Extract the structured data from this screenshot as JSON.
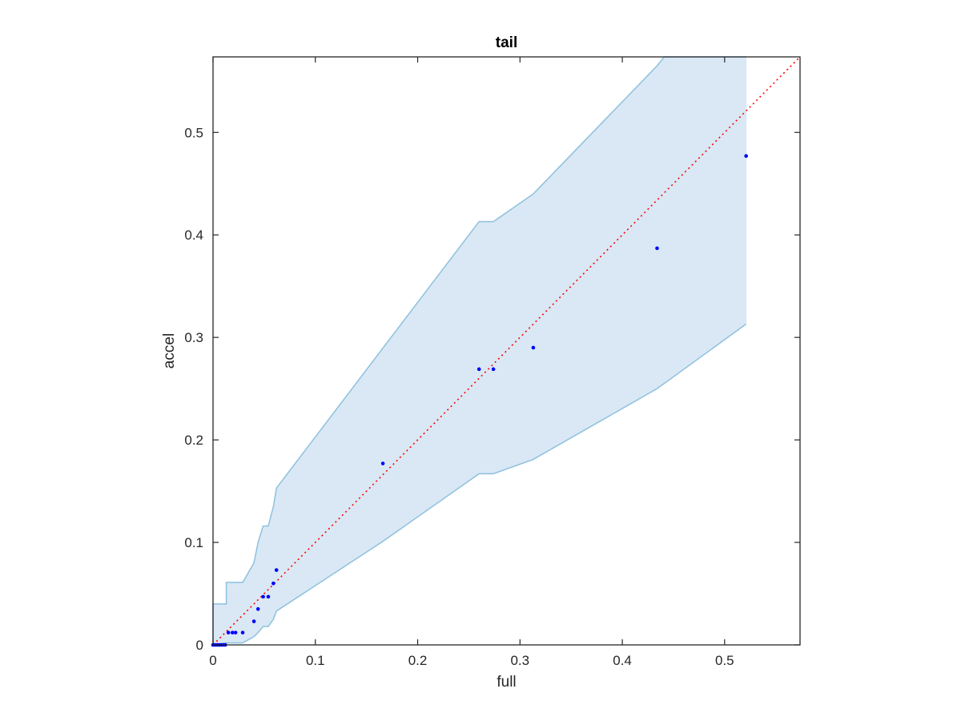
{
  "chart_data": {
    "type": "scatter",
    "title": "tail",
    "xlabel": "full",
    "ylabel": "accel",
    "xlim": [
      0,
      0.5737
    ],
    "ylim": [
      0,
      0.5737
    ],
    "xticks": [
      "0",
      "0.1",
      "0.2",
      "0.3",
      "0.4",
      "0.5"
    ],
    "yticks": [
      "0",
      "0.1",
      "0.2",
      "0.3",
      "0.4",
      "0.5"
    ],
    "xtick_values": [
      0,
      0.1,
      0.2,
      0.3,
      0.4,
      0.5
    ],
    "ytick_values": [
      0,
      0.1,
      0.2,
      0.3,
      0.4,
      0.5
    ],
    "grid": false,
    "legend": "none",
    "colors": {
      "points": "#0000ff",
      "band_fill": "#d9e8f4",
      "band_edge": "#8ec0df",
      "reference_line": "#ff0000",
      "axes": "#262626"
    },
    "points": {
      "x": [
        0,
        0.002,
        0.004,
        0.006,
        0.008,
        0.01,
        0.012,
        0.015,
        0.019,
        0.022,
        0.029,
        0.04,
        0.044,
        0.049,
        0.054,
        0.059,
        0.062,
        0.166,
        0.26,
        0.274,
        0.313,
        0.434,
        0.521
      ],
      "y": [
        0,
        0,
        0,
        0,
        0,
        0,
        0,
        0.012,
        0.012,
        0.012,
        0.012,
        0.023,
        0.035,
        0.047,
        0.047,
        0.06,
        0.073,
        0.177,
        0.269,
        0.269,
        0.29,
        0.387,
        0.477
      ]
    },
    "band": {
      "x_upper": [
        0,
        0,
        0.013,
        0.013,
        0.029,
        0.04,
        0.044,
        0.049,
        0.054,
        0.059,
        0.062,
        0.26,
        0.274,
        0.313,
        0.434,
        0.441,
        0.521
      ],
      "upper": [
        0,
        0.04,
        0.04,
        0.061,
        0.061,
        0.08,
        0.1,
        0.116,
        0.116,
        0.135,
        0.153,
        0.413,
        0.413,
        0.44,
        0.565,
        0.5737,
        0.5737
      ],
      "x_lower": [
        0,
        0.013,
        0.029,
        0.04,
        0.044,
        0.049,
        0.054,
        0.059,
        0.062,
        0.166,
        0.26,
        0.274,
        0.313,
        0.434,
        0.521
      ],
      "lower": [
        0,
        0.002,
        0.002,
        0.008,
        0.012,
        0.018,
        0.018,
        0.025,
        0.033,
        0.101,
        0.167,
        0.167,
        0.181,
        0.25,
        0.313
      ]
    },
    "reference_line": {
      "style": "dotted",
      "from": [
        0,
        0
      ],
      "to": [
        0.5737,
        0.5737
      ]
    }
  }
}
